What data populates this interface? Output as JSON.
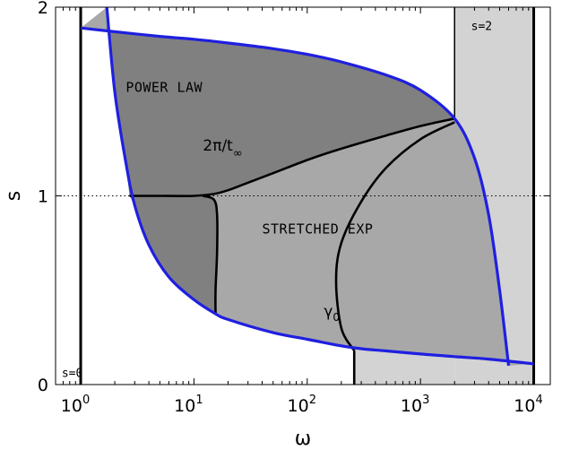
{
  "chart_data": {
    "type": "area",
    "xlabel": "ω",
    "ylabel": "s",
    "xscale": "log",
    "xlim": [
      0.6,
      14000
    ],
    "ylim": [
      0,
      2
    ],
    "x_ticks": [
      {
        "base": "10",
        "exp": "0",
        "value": 1
      },
      {
        "base": "10",
        "exp": "1",
        "value": 10
      },
      {
        "base": "10",
        "exp": "2",
        "value": 100
      },
      {
        "base": "10",
        "exp": "3",
        "value": 1000
      },
      {
        "base": "10",
        "exp": "4",
        "value": 10000
      }
    ],
    "y_ticks": [
      "0",
      "1",
      "2"
    ],
    "reference_line_y": 1,
    "colors": {
      "power_law_fill": "#808080",
      "stretched_fill": "#a8a8a8",
      "s2_band_fill": "#d3d3d3",
      "blue_boundary": "#1f1fe0",
      "black_curves": "#000000"
    },
    "annotations": {
      "power_law": "POWER LAW",
      "stretched_exp": "STRETCHED EXP",
      "s_equals_2": "s=2",
      "s_equals_0": "s=0",
      "two_pi_over_t_main": "2π/t",
      "two_pi_over_t_sub": "∞",
      "gamma_main": "γ",
      "gamma_sub": "0"
    },
    "vertical_lines": {
      "left_bound": 1,
      "right_bound": 10000,
      "s2_band_left": 2000,
      "s2_band_bottom_left": 260
    },
    "series": [
      {
        "role": "upper_boundary",
        "x": [
          1,
          2,
          5,
          10,
          20,
          50,
          100,
          200,
          500,
          1000,
          2000,
          3000,
          4000,
          5000,
          6000
        ],
        "y": [
          1.89,
          1.87,
          1.845,
          1.83,
          1.81,
          1.78,
          1.75,
          1.71,
          1.64,
          1.56,
          1.41,
          1.2,
          0.9,
          0.5,
          0.1
        ]
      },
      {
        "role": "lower_boundary",
        "x": [
          1.7,
          2,
          2.5,
          3,
          4,
          6,
          10,
          15,
          20,
          50,
          100,
          200,
          300,
          500,
          1000,
          2000,
          4000,
          10000
        ],
        "y": [
          2.0,
          1.55,
          1.18,
          0.95,
          0.74,
          0.57,
          0.45,
          0.38,
          0.345,
          0.275,
          0.24,
          0.205,
          0.19,
          0.178,
          0.162,
          0.148,
          0.135,
          0.11
        ]
      },
      {
        "role": "t_infinity_curve",
        "x": [
          2.7,
          5,
          10,
          15,
          20,
          30,
          50,
          100,
          200,
          500,
          1000,
          2000
        ],
        "y": [
          1.0,
          1.0,
          1.0,
          1.01,
          1.03,
          1.07,
          1.12,
          1.19,
          1.25,
          1.32,
          1.37,
          1.41
        ]
      },
      {
        "role": "vertical_branch",
        "x": [
          12,
          15,
          16,
          16,
          15.5,
          15.5
        ],
        "y": [
          1.0,
          0.98,
          0.9,
          0.7,
          0.5,
          0.37
        ]
      },
      {
        "role": "gamma_0_curve",
        "x": [
          2000,
          1000,
          500,
          300,
          200,
          180,
          200,
          260
        ],
        "y": [
          1.39,
          1.3,
          1.15,
          0.97,
          0.75,
          0.55,
          0.3,
          0.18
        ]
      }
    ]
  }
}
